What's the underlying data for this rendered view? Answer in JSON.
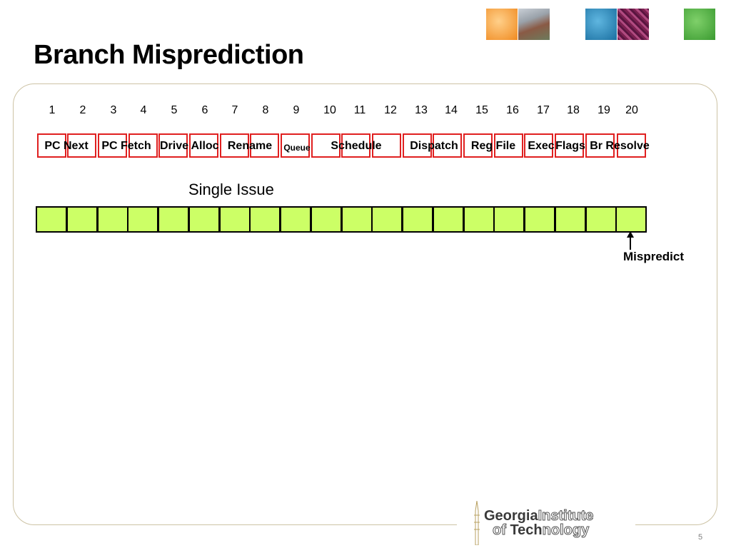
{
  "title": "Branch Misprediction",
  "cycle_numbers": [
    "1",
    "2",
    "3",
    "4",
    "5",
    "6",
    "7",
    "8",
    "9",
    "10",
    "11",
    "12",
    "13",
    "14",
    "15",
    "16",
    "17",
    "18",
    "19",
    "20"
  ],
  "pipeline_stages": [
    {
      "label": "PC Next"
    },
    {
      "label": "PC Fetch"
    },
    {
      "label": "Drive"
    },
    {
      "label": "Alloc"
    },
    {
      "label": "Rename"
    },
    {
      "label": "Queue"
    },
    {
      "label": "Schedule"
    },
    {
      "label": "Dispatch"
    },
    {
      "label": "Reg File"
    },
    {
      "label": "Exec"
    },
    {
      "label": "Flags"
    },
    {
      "label": "Br Resolve"
    }
  ],
  "single_issue_label": "Single Issue",
  "issue_cell_count": 20,
  "mispredict_label": "Mispredict",
  "logo": {
    "line1_bold": "Georgia",
    "line1_outline": "Institute",
    "line2_outline_prefix": "of ",
    "line2_bold": "Tech",
    "line2_outline": "nology"
  },
  "page_number": "5",
  "colors": {
    "stage_border": "#e02020",
    "issue_cell_fill": "#ccff66",
    "frame_border": "#cdc3a5"
  }
}
